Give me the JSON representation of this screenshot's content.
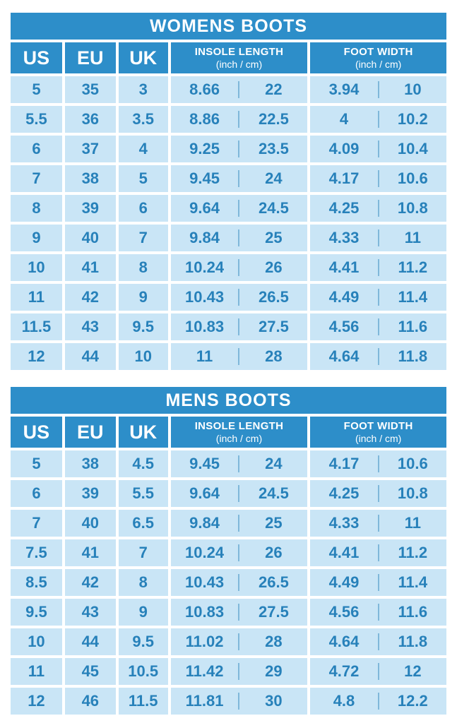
{
  "colors": {
    "header_blue": "#2d8ec9",
    "cell_light_blue": "#c9e5f6",
    "value_text_blue": "#2781ba",
    "divider_blue": "#7fb8da",
    "gap_white": "#ffffff",
    "header_text": "#ffffff"
  },
  "tables": [
    {
      "title": "WOMENS BOOTS",
      "columns": [
        "US",
        "EU",
        "UK",
        "INSOLE LENGTH",
        "FOOT WIDTH"
      ],
      "unit_note": "(inch / cm)",
      "rows": [
        [
          "5",
          "35",
          "3",
          "8.66",
          "22",
          "3.94",
          "10"
        ],
        [
          "5.5",
          "36",
          "3.5",
          "8.86",
          "22.5",
          "4",
          "10.2"
        ],
        [
          "6",
          "37",
          "4",
          "9.25",
          "23.5",
          "4.09",
          "10.4"
        ],
        [
          "7",
          "38",
          "5",
          "9.45",
          "24",
          "4.17",
          "10.6"
        ],
        [
          "8",
          "39",
          "6",
          "9.64",
          "24.5",
          "4.25",
          "10.8"
        ],
        [
          "9",
          "40",
          "7",
          "9.84",
          "25",
          "4.33",
          "11"
        ],
        [
          "10",
          "41",
          "8",
          "10.24",
          "26",
          "4.41",
          "11.2"
        ],
        [
          "11",
          "42",
          "9",
          "10.43",
          "26.5",
          "4.49",
          "11.4"
        ],
        [
          "11.5",
          "43",
          "9.5",
          "10.83",
          "27.5",
          "4.56",
          "11.6"
        ],
        [
          "12",
          "44",
          "10",
          "11",
          "28",
          "4.64",
          "11.8"
        ]
      ]
    },
    {
      "title": "MENS BOOTS",
      "columns": [
        "US",
        "EU",
        "UK",
        "INSOLE LENGTH",
        "FOOT WIDTH"
      ],
      "unit_note": "(inch / cm)",
      "rows": [
        [
          "5",
          "38",
          "4.5",
          "9.45",
          "24",
          "4.17",
          "10.6"
        ],
        [
          "6",
          "39",
          "5.5",
          "9.64",
          "24.5",
          "4.25",
          "10.8"
        ],
        [
          "7",
          "40",
          "6.5",
          "9.84",
          "25",
          "4.33",
          "11"
        ],
        [
          "7.5",
          "41",
          "7",
          "10.24",
          "26",
          "4.41",
          "11.2"
        ],
        [
          "8.5",
          "42",
          "8",
          "10.43",
          "26.5",
          "4.49",
          "11.4"
        ],
        [
          "9.5",
          "43",
          "9",
          "10.83",
          "27.5",
          "4.56",
          "11.6"
        ],
        [
          "10",
          "44",
          "9.5",
          "11.02",
          "28",
          "4.64",
          "11.8"
        ],
        [
          "11",
          "45",
          "10.5",
          "11.42",
          "29",
          "4.72",
          "12"
        ],
        [
          "12",
          "46",
          "11.5",
          "11.81",
          "30",
          "4.8",
          "12.2"
        ]
      ]
    }
  ]
}
